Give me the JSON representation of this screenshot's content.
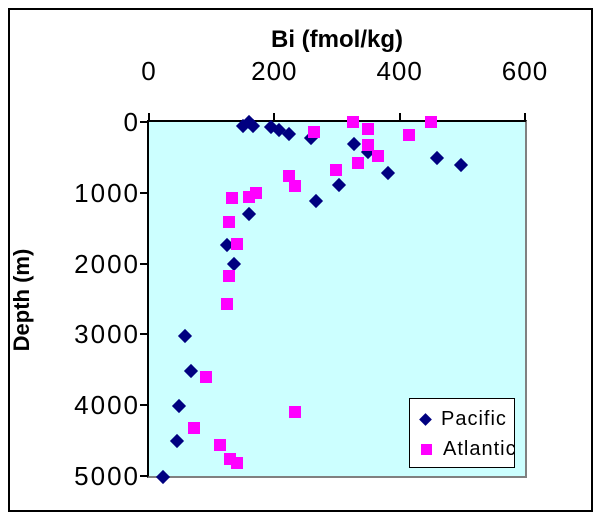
{
  "chart": {
    "title": "Bi (fmol/kg)",
    "y_axis_label": "Depth (m)",
    "x_ticks": [
      0,
      200,
      400,
      600
    ],
    "y_ticks": [
      0,
      1000,
      2000,
      3000,
      4000,
      5000
    ],
    "colors": {
      "plot_background": "#CCFFFF",
      "pacific": "#000080",
      "atlantic": "#FF00FF",
      "axis": "#000000",
      "plot_border": "#808080"
    }
  },
  "chart_data": {
    "type": "scatter",
    "title": "Bi (fmol/kg)",
    "xlabel": "Bi (fmol/kg)",
    "ylabel": "Depth (m)",
    "xlim": [
      0,
      600
    ],
    "ylim": [
      0,
      5000
    ],
    "y_inverted": true,
    "grid": false,
    "legend_position": "inside-bottom-right",
    "series": [
      {
        "name": "Pacific",
        "marker": "diamond",
        "color": "#000080",
        "points": [
          [
            150,
            60
          ],
          [
            159,
            5
          ],
          [
            166,
            50
          ],
          [
            195,
            75
          ],
          [
            207,
            115
          ],
          [
            223,
            170
          ],
          [
            259,
            225
          ],
          [
            327,
            310
          ],
          [
            349,
            430
          ],
          [
            460,
            515
          ],
          [
            498,
            605
          ],
          [
            381,
            725
          ],
          [
            303,
            885
          ],
          [
            266,
            1110
          ],
          [
            159,
            1295
          ],
          [
            125,
            1740
          ],
          [
            135,
            2010
          ],
          [
            57,
            3020
          ],
          [
            67,
            3520
          ],
          [
            48,
            4010
          ],
          [
            45,
            4505
          ],
          [
            22,
            5010
          ]
        ]
      },
      {
        "name": "Atlantic",
        "marker": "square",
        "color": "#FF00FF",
        "points": [
          [
            325,
            5
          ],
          [
            450,
            0
          ],
          [
            349,
            95
          ],
          [
            264,
            140
          ],
          [
            415,
            190
          ],
          [
            349,
            330
          ],
          [
            365,
            480
          ],
          [
            333,
            575
          ],
          [
            299,
            680
          ],
          [
            224,
            765
          ],
          [
            233,
            905
          ],
          [
            171,
            1005
          ],
          [
            160,
            1060
          ],
          [
            133,
            1075
          ],
          [
            127,
            1410
          ],
          [
            141,
            1725
          ],
          [
            127,
            2175
          ],
          [
            125,
            2570
          ],
          [
            91,
            3600
          ],
          [
            233,
            4095
          ],
          [
            72,
            4320
          ],
          [
            114,
            4560
          ],
          [
            129,
            4760
          ],
          [
            141,
            4815
          ]
        ]
      }
    ]
  }
}
